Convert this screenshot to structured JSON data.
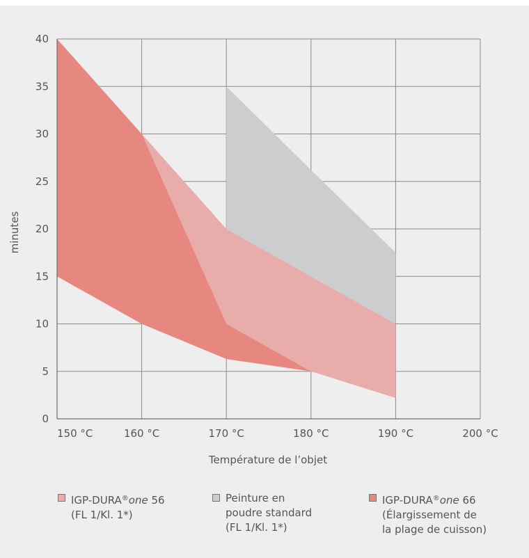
{
  "chart_data": {
    "type": "area",
    "xlabel": "Température de l’objet",
    "ylabel": "minutes",
    "xlim": [
      150,
      200
    ],
    "ylim": [
      0,
      40
    ],
    "x_ticks": [
      150,
      160,
      170,
      180,
      190,
      200
    ],
    "x_tick_labels": [
      "150 °C",
      "160 °C",
      "170 °C",
      "180 °C",
      "190 °C",
      "200 °C"
    ],
    "y_ticks": [
      0,
      5,
      10,
      15,
      20,
      25,
      30,
      35,
      40
    ],
    "y_tick_labels": [
      "0",
      "5",
      "10",
      "15",
      "20",
      "25",
      "30",
      "35",
      "40"
    ],
    "grid": true,
    "legend_position": "bottom",
    "series": [
      {
        "legend_key": "igp56",
        "color": "#e8adaa",
        "x": [
          160,
          170,
          180,
          190
        ],
        "upper": [
          30,
          20,
          15,
          10
        ],
        "lower": [
          15,
          10,
          5,
          2.2
        ]
      },
      {
        "legend_key": "standard",
        "color": "#cbcdcf",
        "x": [
          170,
          180,
          190
        ],
        "upper": [
          35,
          26.2,
          17.5
        ],
        "lower": [
          20,
          15,
          10
        ]
      },
      {
        "legend_key": "igp66",
        "color": "#e68880",
        "x": [
          150,
          160,
          170,
          180
        ],
        "upper": [
          40,
          30,
          10,
          5
        ],
        "lower": [
          15,
          10,
          6.3,
          5
        ]
      }
    ]
  },
  "legend": {
    "igp56": {
      "color": "#e8adaa",
      "name": "IGP-DURA",
      "reg": "®",
      "italic": "one",
      "suffix": " 56",
      "line2": "(FL 1/Kl. 1*)"
    },
    "standard": {
      "color": "#cbcdcf",
      "line1": "Peinture en",
      "line2": "poudre standard",
      "line3": "(FL 1/Kl. 1*)"
    },
    "igp66": {
      "color": "#e68880",
      "name": "IGP-DURA",
      "reg": "®",
      "italic": "one",
      "suffix": " 66",
      "line2": "(Élargissement de",
      "line3": "la plage de cuisson)"
    }
  }
}
